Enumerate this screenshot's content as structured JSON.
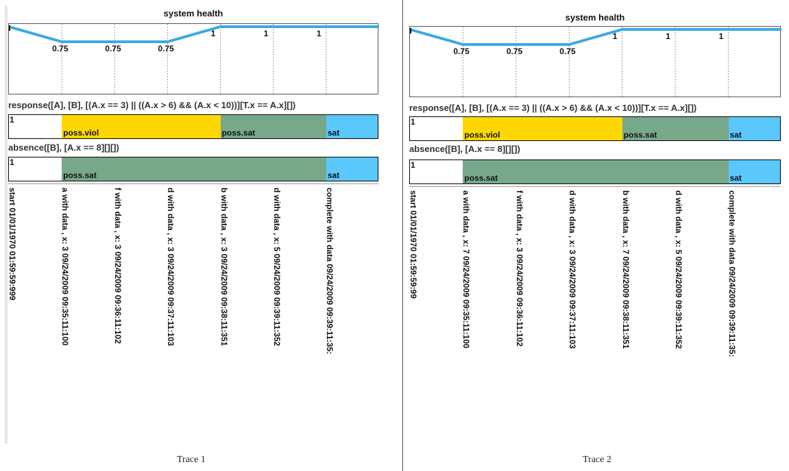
{
  "colors": {
    "line": "#3aa9e6",
    "poss_viol": "#ffd700",
    "poss_sat": "#78a88a",
    "sat": "#5ac8fb",
    "grid": "#999999"
  },
  "traces": [
    {
      "caption": "Trace 1",
      "health_title": "system health",
      "health_values": [
        1,
        0.75,
        0.75,
        0.75,
        1,
        1,
        1
      ],
      "health_labels": [
        "1",
        "0.75",
        "0.75",
        "0.75",
        "1",
        "1",
        "1"
      ],
      "constraints": [
        {
          "label": "response([A], [B], [(A.x == 3) || ((A.x > 6) && (A.x < 10))][T.x == A.x][])",
          "start_mark": "1",
          "segments": [
            {
              "state": "poss.viol",
              "from": 1,
              "to": 4
            },
            {
              "state": "poss.sat",
              "from": 4,
              "to": 6
            },
            {
              "state": "sat",
              "from": 6,
              "to": 7
            }
          ]
        },
        {
          "label": "absence([B], [A.x == 8][][])",
          "start_mark": "1",
          "segments": [
            {
              "state": "poss.sat",
              "from": 1,
              "to": 6
            },
            {
              "state": "sat",
              "from": 6,
              "to": 7
            }
          ]
        }
      ],
      "events": [
        "start 01/01/1970 01:59:59:999",
        "a with data , x: 3 09/24/2009 09:35:11:100",
        "f with data , x: 3 09/24/2009 09:36:11:102",
        "d with data , x: 3 09/24/2009 09:37:11:103",
        "b with data , x: 3 09/24/2009 09:38:11:351",
        "d with data , x: 5 09/24/2009 09:39:11:352",
        "complete with data  09/24/2009 09:39:11:35:"
      ]
    },
    {
      "caption": "Trace 2",
      "health_title": "system health",
      "health_values": [
        1,
        0.75,
        0.75,
        0.75,
        1,
        1,
        1
      ],
      "health_labels": [
        "1",
        "0.75",
        "0.75",
        "0.75",
        "1",
        "1",
        "1"
      ],
      "constraints": [
        {
          "label": "response([A], [B], [(A.x == 3) || ((A.x > 6) && (A.x < 10))][T.x == A.x][])",
          "start_mark": "1",
          "segments": [
            {
              "state": "poss.viol",
              "from": 1,
              "to": 4
            },
            {
              "state": "poss.sat",
              "from": 4,
              "to": 6
            },
            {
              "state": "sat",
              "from": 6,
              "to": 7
            }
          ]
        },
        {
          "label": "absence([B], [A.x == 8][][])",
          "start_mark": "1",
          "segments": [
            {
              "state": "poss.sat",
              "from": 1,
              "to": 6
            },
            {
              "state": "sat",
              "from": 6,
              "to": 7
            }
          ]
        }
      ],
      "events": [
        "start 01/01/1970 01:59:59:99",
        "a with data , x: 7 09/24/2009 09:35:11:100",
        "f with data , x: 3 09/24/2009 09:36:11:102",
        "d with data , x: 3 09/24/2009 09:37:11:103",
        "b with data , x: 7 09/24/2009 09:38:11:351",
        "d with data , x: 5 09/24/2009 09:39:11:352",
        "complete with data  09/24/2009 09:39:11:35:"
      ]
    }
  ]
}
